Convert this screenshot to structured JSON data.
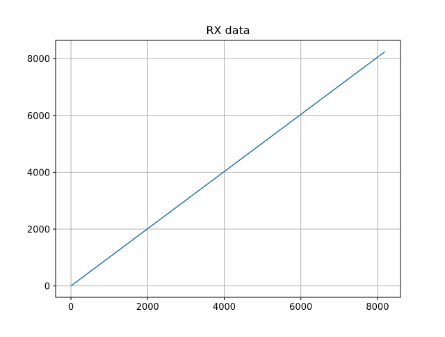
{
  "chart_data": {
    "type": "line",
    "title": "RX data",
    "xlabel": "",
    "ylabel": "",
    "xlim": [
      -400,
      8600
    ],
    "ylim": [
      -400,
      8640
    ],
    "x_ticks": [
      0,
      2000,
      4000,
      6000,
      8000
    ],
    "y_ticks": [
      0,
      2000,
      4000,
      6000,
      8000
    ],
    "x_tick_labels": [
      "0",
      "2000",
      "4000",
      "6000",
      "8000"
    ],
    "y_tick_labels": [
      "0",
      "2000",
      "4000",
      "6000",
      "8000"
    ],
    "grid": true,
    "legend": false,
    "series": [
      {
        "color": "#1f77b4",
        "x": [
          0,
          8191
        ],
        "y": [
          0,
          8240
        ]
      }
    ]
  }
}
